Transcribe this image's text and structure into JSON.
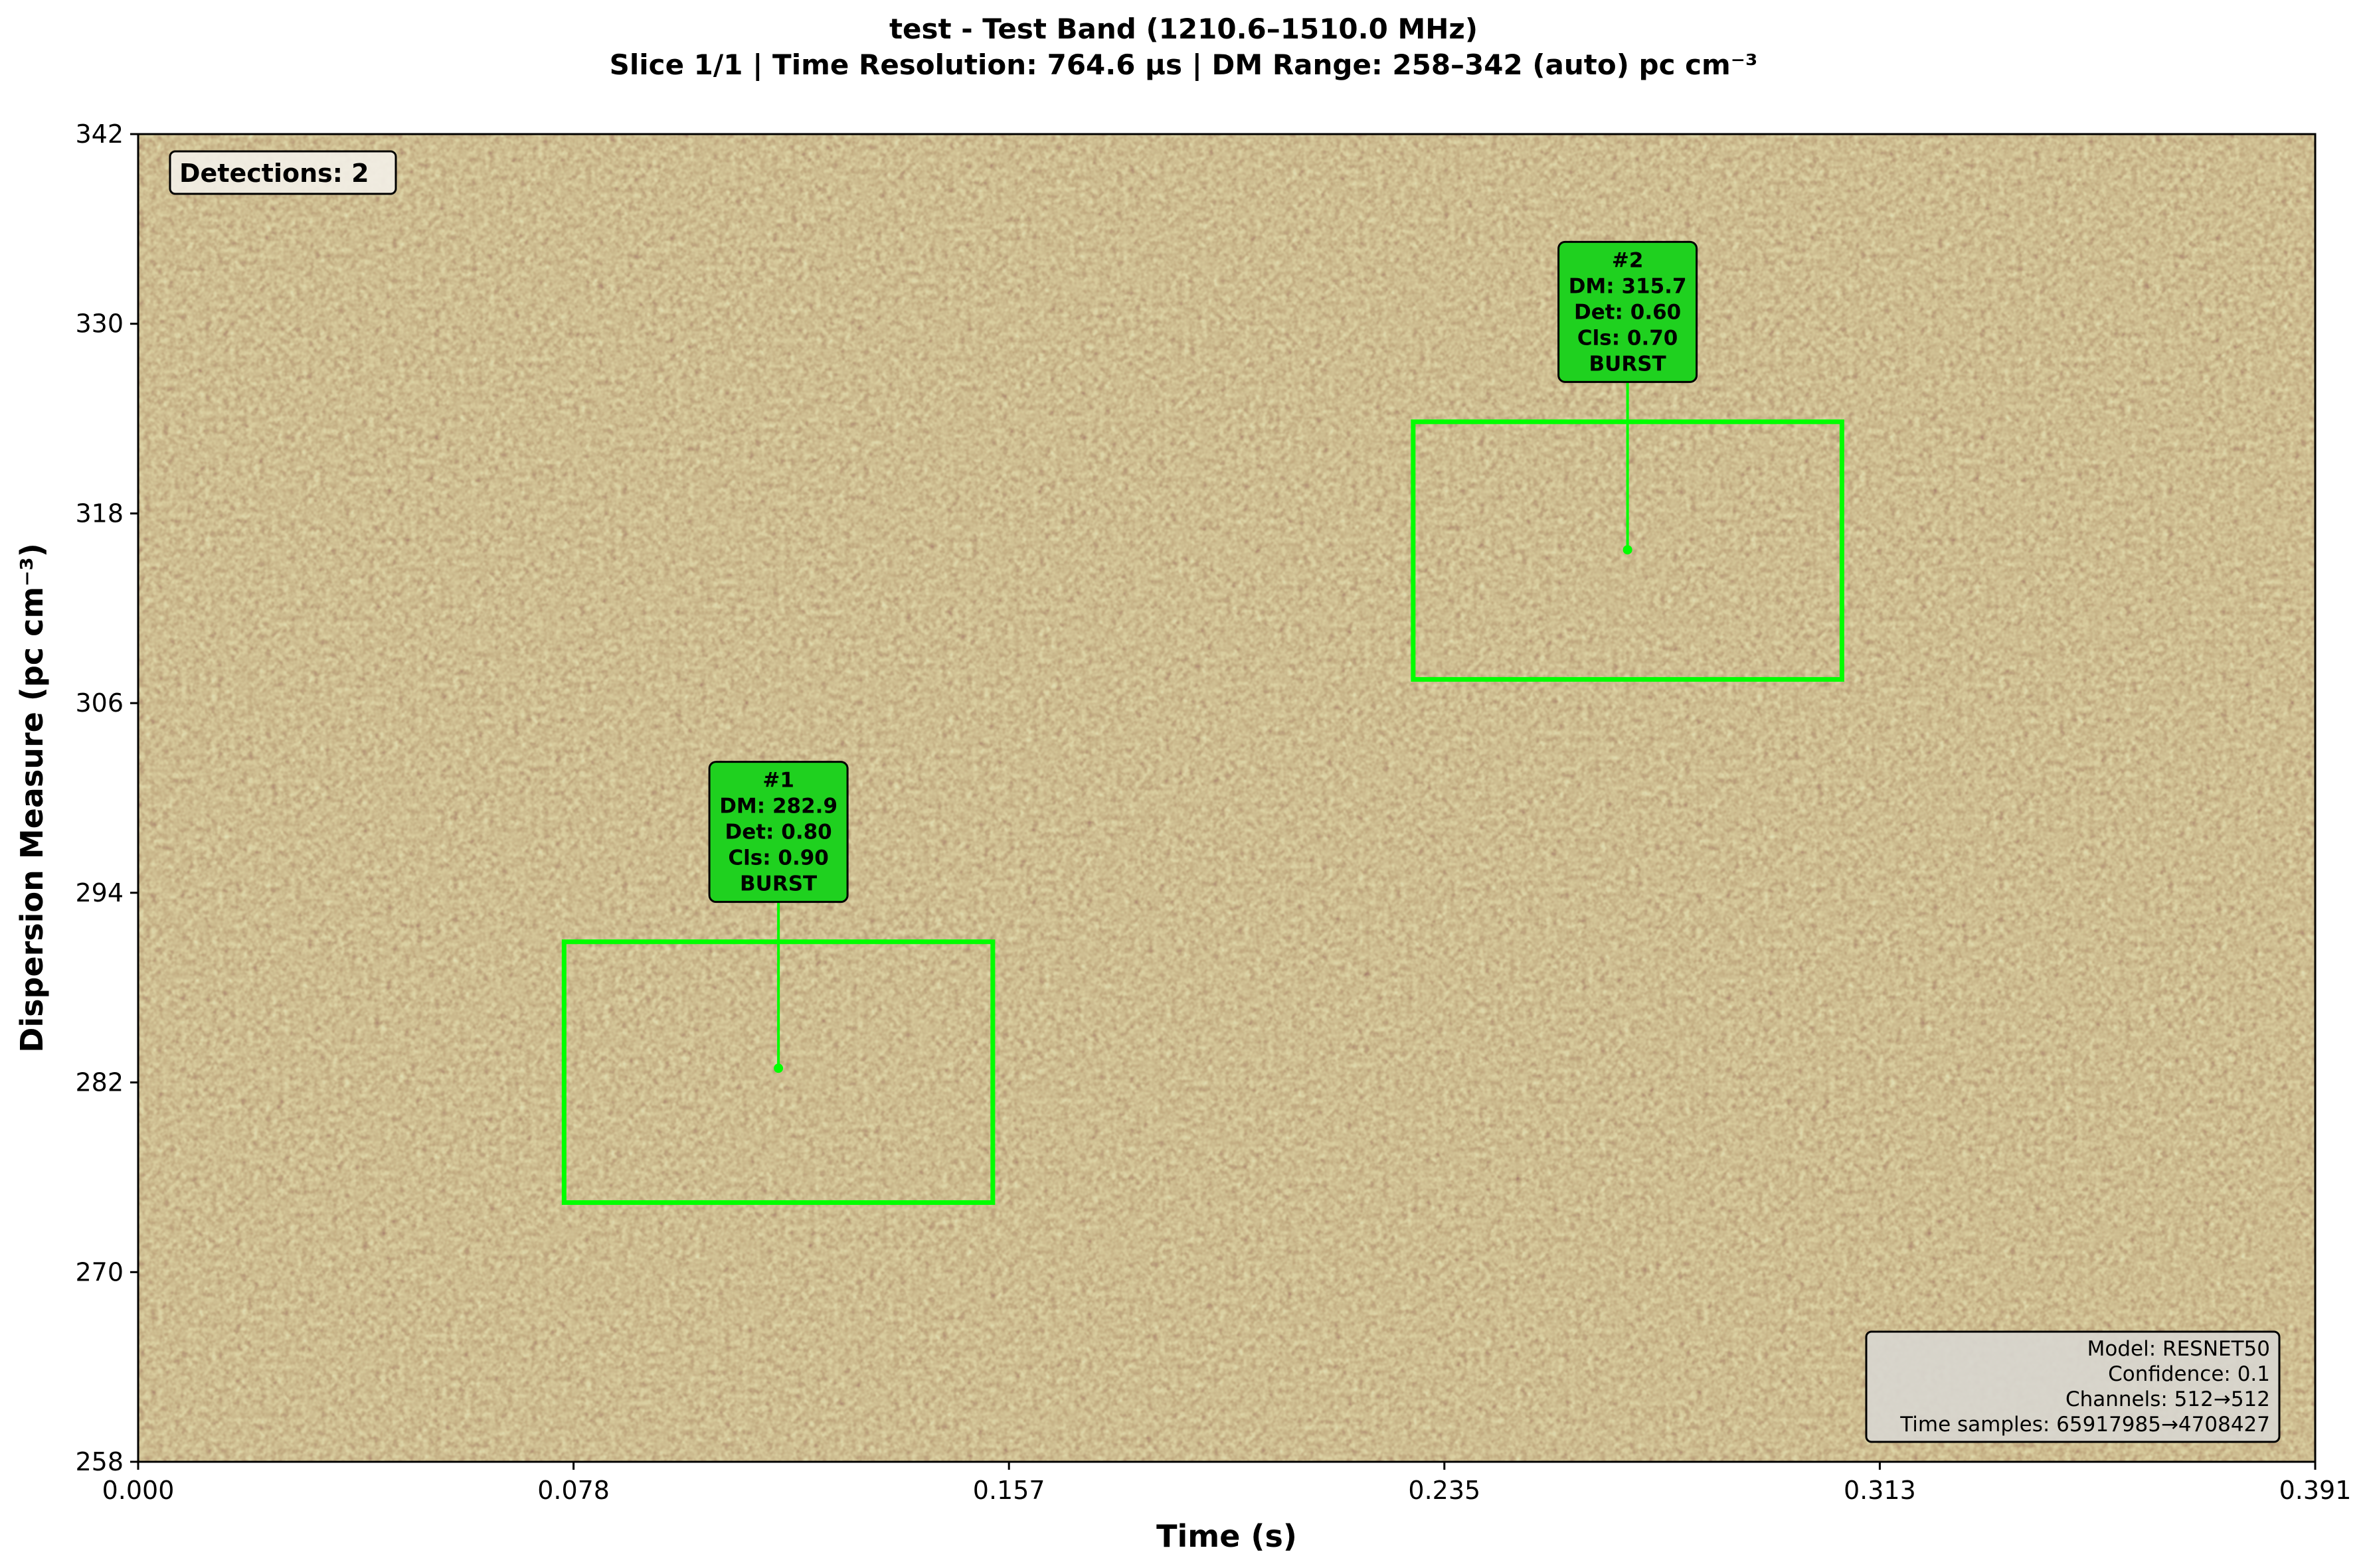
{
  "chart_data": {
    "type": "heatmap",
    "title": "test - Test Band (1210.6–1510.0 MHz)",
    "subtitle": "Slice 1/1 | Time Resolution: 764.6 µs | DM Range: 258–342 (auto) pc cm⁻³",
    "xlabel": "Time (s)",
    "ylabel": "Dispersion Measure (pc cm⁻³)",
    "xlim": [
      0.0,
      0.391
    ],
    "ylim": [
      258,
      342
    ],
    "x_ticks": [
      "0.000",
      "0.078",
      "0.157",
      "0.235",
      "0.313",
      "0.391"
    ],
    "y_ticks": [
      "258",
      "270",
      "282",
      "294",
      "306",
      "318",
      "330",
      "342"
    ],
    "colormap": [
      "#2b1418",
      "#6b3f2a",
      "#8c6b3a",
      "#b09a57",
      "#c4c27a",
      "#e3e7b3"
    ],
    "detection_count_label": "Detections: 2",
    "detections": [
      {
        "id_label": "#1",
        "dm_label": "DM: 282.9",
        "det_label": "Det: 0.80",
        "cls_label": "Cls: 0.90",
        "class_label": "BURST",
        "time_range": [
          0.0765,
          0.1535
        ],
        "dm_range": [
          274.4,
          290.9
        ],
        "center": [
          0.115,
          282.9
        ]
      },
      {
        "id_label": "#2",
        "dm_label": "DM: 315.7",
        "det_label": "Det: 0.60",
        "cls_label": "Cls: 0.70",
        "class_label": "BURST",
        "time_range": [
          0.229,
          0.306
        ],
        "dm_range": [
          307.5,
          323.8
        ],
        "center": [
          0.2675,
          315.7
        ]
      }
    ],
    "info_box": [
      "Model: RESNET50",
      "Confidence: 0.1",
      "Channels: 512→512",
      "Time samples: 65917985→4708427"
    ],
    "box_color": "#00ff00",
    "label_bg_color": "#1fd11f",
    "grid": false
  }
}
